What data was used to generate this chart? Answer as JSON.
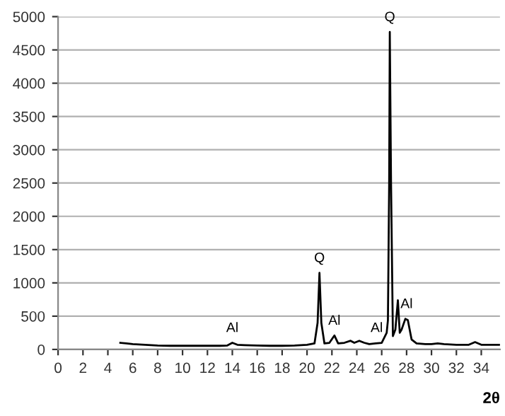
{
  "chart_data": {
    "type": "line",
    "xlabel": "2θ",
    "series": [
      {
        "color": "#000000",
        "x": [
          5,
          5.5,
          6,
          7,
          8,
          9,
          10,
          11,
          12,
          13,
          13.6,
          14,
          14.4,
          15,
          16,
          17,
          18,
          19,
          20,
          20.6,
          20.85,
          21,
          21.15,
          21.4,
          21.8,
          22.2,
          22.5,
          23,
          23.5,
          23.8,
          24.2,
          24.6,
          25,
          25.5,
          26,
          26.4,
          26.5,
          26.6,
          26.65,
          26.75,
          26.9,
          27.1,
          27.3,
          27.45,
          27.6,
          27.9,
          28.1,
          28.4,
          28.8,
          29.5,
          30,
          30.5,
          31,
          32,
          33,
          33.5,
          34,
          35,
          35.5
        ],
        "values": [
          100,
          90,
          80,
          70,
          60,
          55,
          55,
          55,
          55,
          55,
          60,
          100,
          70,
          65,
          60,
          55,
          55,
          60,
          70,
          90,
          400,
          1150,
          400,
          90,
          100,
          210,
          90,
          100,
          130,
          100,
          130,
          100,
          80,
          90,
          100,
          250,
          440,
          2500,
          4770,
          2500,
          200,
          300,
          740,
          250,
          300,
          460,
          440,
          150,
          90,
          80,
          80,
          90,
          80,
          70,
          70,
          110,
          70,
          70,
          70
        ]
      }
    ],
    "xlim": [
      0,
      35.5
    ],
    "xticks": [
      0,
      2,
      4,
      6,
      8,
      10,
      12,
      14,
      16,
      18,
      20,
      22,
      24,
      26,
      28,
      30,
      32,
      34
    ],
    "ylim": [
      0,
      5000
    ],
    "yticks": [
      0,
      500,
      1000,
      1500,
      2000,
      2500,
      3000,
      3500,
      4000,
      4500,
      5000
    ],
    "grid": "y",
    "marker": "none",
    "line_style": "solid",
    "annotations": [
      {
        "text": "Al",
        "x": 14,
        "y": 100
      },
      {
        "text": "Q",
        "x": 21,
        "y": 1150
      },
      {
        "text": "Al",
        "x": 22.2,
        "y": 210
      },
      {
        "text": "Al",
        "x": 25.6,
        "y": 100
      },
      {
        "text": "Q",
        "x": 26.65,
        "y": 4770
      },
      {
        "text": "Al",
        "x": 28,
        "y": 460
      }
    ]
  }
}
